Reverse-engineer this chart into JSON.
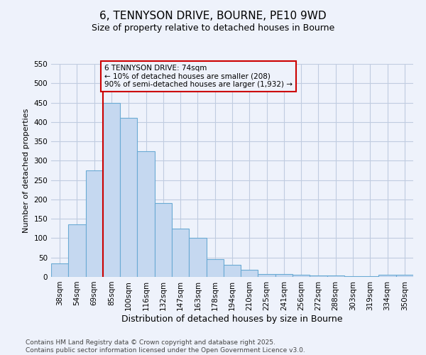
{
  "title": "6, TENNYSON DRIVE, BOURNE, PE10 9WD",
  "subtitle": "Size of property relative to detached houses in Bourne",
  "xlabel": "Distribution of detached houses by size in Bourne",
  "ylabel": "Number of detached properties",
  "categories": [
    "38sqm",
    "54sqm",
    "69sqm",
    "85sqm",
    "100sqm",
    "116sqm",
    "132sqm",
    "147sqm",
    "163sqm",
    "178sqm",
    "194sqm",
    "210sqm",
    "225sqm",
    "241sqm",
    "256sqm",
    "272sqm",
    "288sqm",
    "303sqm",
    "319sqm",
    "334sqm",
    "350sqm"
  ],
  "values": [
    35,
    135,
    275,
    450,
    410,
    325,
    190,
    125,
    100,
    45,
    32,
    18,
    7,
    7,
    5,
    3,
    4,
    2,
    1,
    5,
    5
  ],
  "bar_color": "#c5d8f0",
  "bar_edge_color": "#6aaad4",
  "vline_index": 2,
  "vline_color": "#cc0000",
  "annotation_text": "6 TENNYSON DRIVE: 74sqm\n← 10% of detached houses are smaller (208)\n90% of semi-detached houses are larger (1,932) →",
  "annotation_box_color": "#cc0000",
  "ylim": [
    0,
    550
  ],
  "yticks": [
    0,
    50,
    100,
    150,
    200,
    250,
    300,
    350,
    400,
    450,
    500,
    550
  ],
  "footer_line1": "Contains HM Land Registry data © Crown copyright and database right 2025.",
  "footer_line2": "Contains public sector information licensed under the Open Government Licence v3.0.",
  "bg_color": "#eef2fb",
  "grid_color": "#c0cce0",
  "title_fontsize": 11,
  "subtitle_fontsize": 9,
  "ylabel_fontsize": 8,
  "xlabel_fontsize": 9,
  "tick_fontsize": 7.5,
  "footer_fontsize": 6.5
}
